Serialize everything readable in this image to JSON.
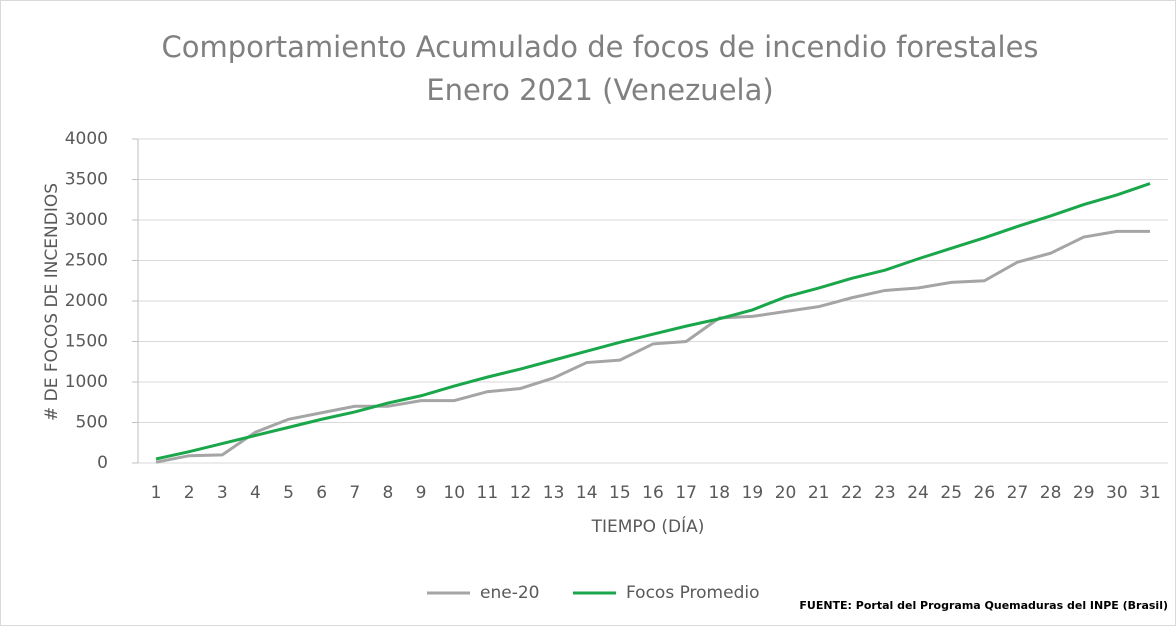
{
  "chart_data": {
    "type": "line",
    "title": "Comportamiento Acumulado de focos de incendio forestales",
    "subtitle": "Enero 2021 (Venezuela)",
    "x_label": "TIEMPO (DÍA)",
    "y_label": "# DE FOCOS DE INCENDIOS",
    "source": "FUENTE:  Portal del Programa Quemaduras del INPE (Brasil)",
    "categories": [
      "1",
      "2",
      "3",
      "4",
      "5",
      "6",
      "7",
      "8",
      "9",
      "10",
      "11",
      "12",
      "13",
      "14",
      "15",
      "16",
      "17",
      "18",
      "19",
      "20",
      "21",
      "22",
      "23",
      "24",
      "25",
      "26",
      "27",
      "28",
      "29",
      "30",
      "31"
    ],
    "series": [
      {
        "name": "ene-20",
        "color": "#a5a5a5",
        "values": [
          10,
          90,
          100,
          380,
          540,
          620,
          700,
          700,
          770,
          770,
          880,
          920,
          1050,
          1240,
          1270,
          1470,
          1500,
          1790,
          1810,
          1870,
          1930,
          2040,
          2130,
          2160,
          2230,
          2250,
          2480,
          2590,
          2790,
          2860,
          2860
        ]
      },
      {
        "name": "Focos Promedio",
        "color": "#1aa64a",
        "values": [
          50,
          140,
          240,
          340,
          440,
          540,
          630,
          740,
          830,
          950,
          1060,
          1160,
          1270,
          1380,
          1490,
          1590,
          1690,
          1780,
          1890,
          2050,
          2160,
          2280,
          2380,
          2520,
          2650,
          2780,
          2920,
          3050,
          3190,
          3310,
          3450
        ]
      }
    ],
    "ylim": [
      0,
      4000
    ],
    "yticks": [
      0,
      500,
      1000,
      1500,
      2000,
      2500,
      3000,
      3500,
      4000
    ],
    "grid": true,
    "legend": "bottom"
  }
}
